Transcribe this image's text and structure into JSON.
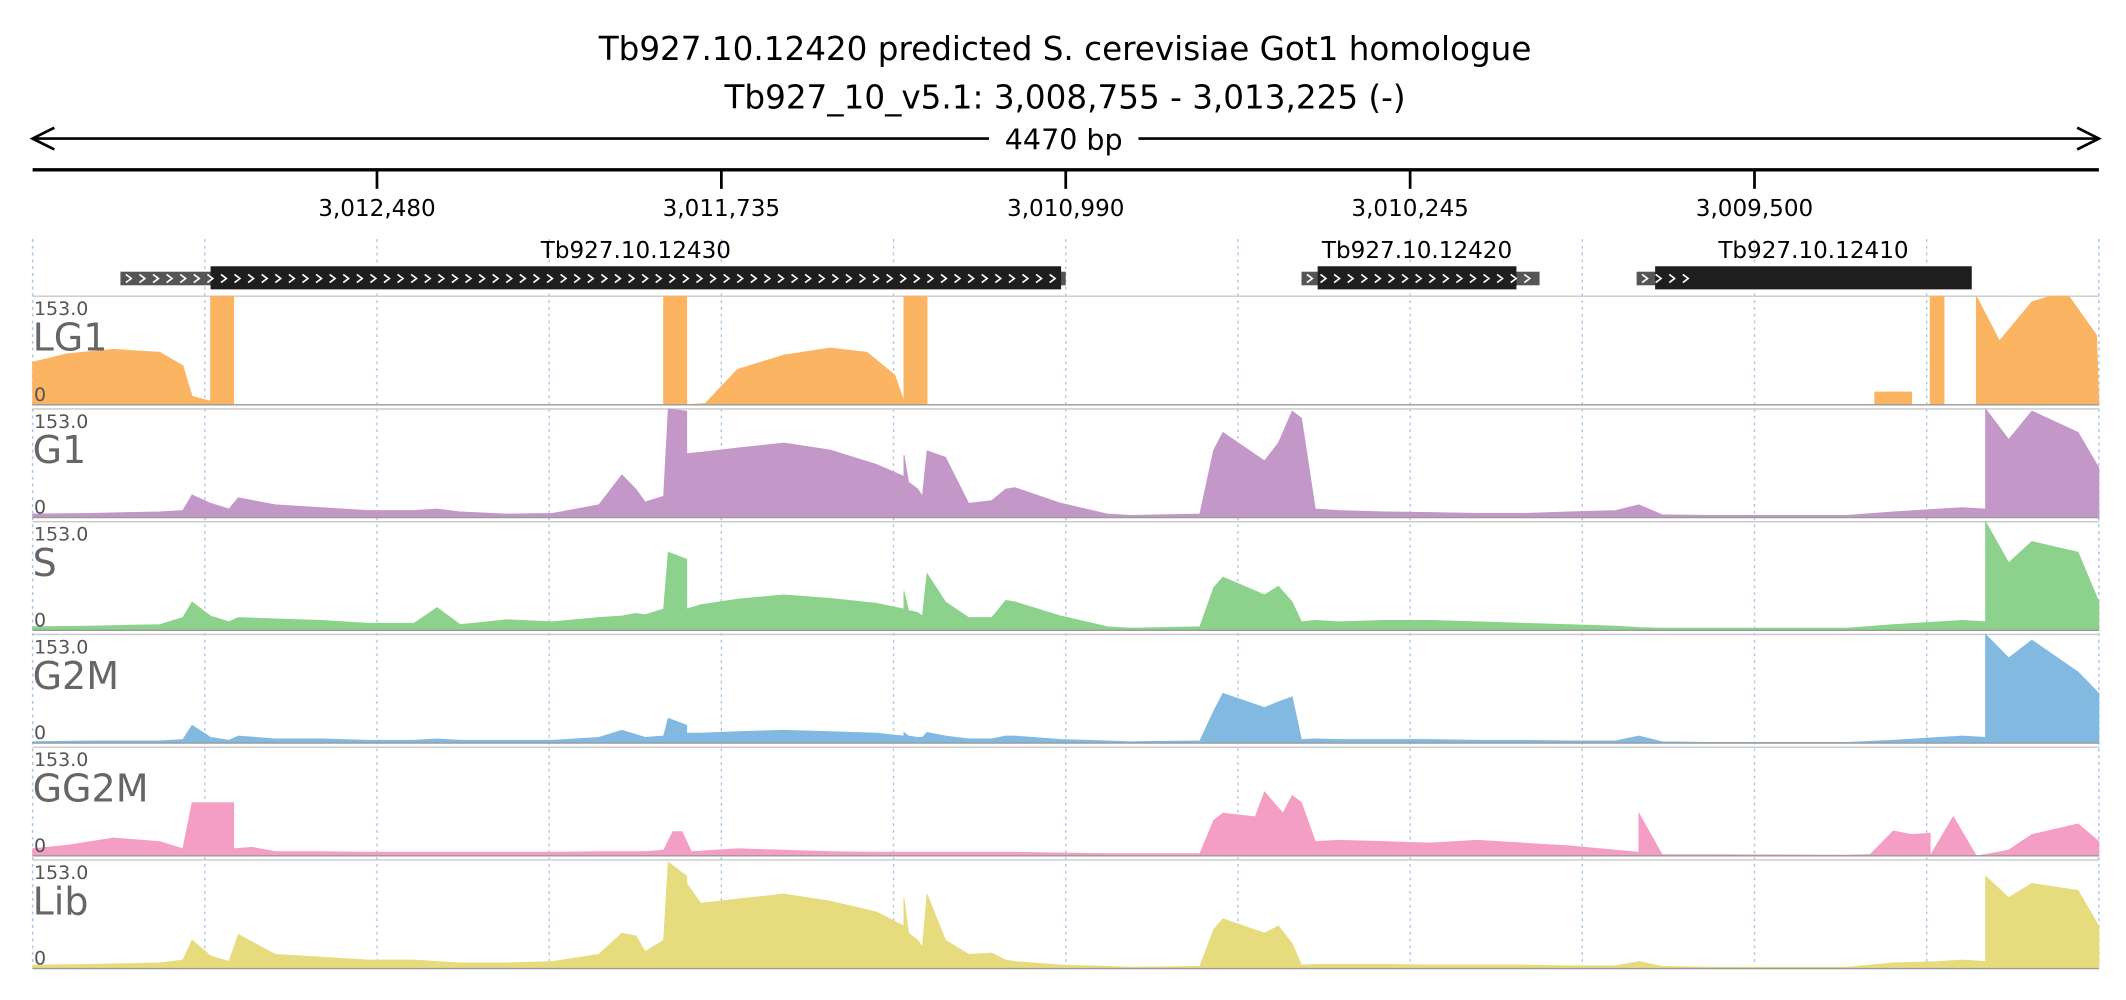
{
  "header": {
    "title_line1": "Tb927.10.12420  predicted S. cerevisiae Got1 homologue",
    "title_line2": "Tb927_10_v5.1: 3,008,755 - 3,013,225 (-)",
    "span_label": "4470 bp"
  },
  "chart_data": {
    "type": "area",
    "strand": "-",
    "x_range": [
      3013225,
      3008755
    ],
    "ticks": [
      {
        "pos": 3012480,
        "label": "3,012,480"
      },
      {
        "pos": 3011735,
        "label": "3,011,735"
      },
      {
        "pos": 3010990,
        "label": "3,010,990"
      },
      {
        "pos": 3010245,
        "label": "3,010,245"
      },
      {
        "pos": 3009500,
        "label": "3,009,500"
      }
    ],
    "genes": [
      {
        "label": "Tb927.10.12430",
        "utr": [
          3013035,
          3010990
        ],
        "cds": [
          3012840,
          3011000
        ]
      },
      {
        "label": "Tb927.10.12420",
        "utr": [
          3010480,
          3009965
        ],
        "cds": [
          3010445,
          3010015
        ]
      },
      {
        "label": "Tb927.10.12410",
        "utr": [
          3009755,
          3009610
        ],
        "cds": [
          3009715,
          3009030
        ]
      }
    ],
    "y_range": [
      0,
      153.0
    ],
    "tracks": [
      {
        "name": "LG1",
        "max_label": "153.0",
        "min_label": "0",
        "color": "#fab462",
        "x": [
          3013225,
          3013150,
          3013050,
          3012950,
          3012900,
          3012880,
          3012840,
          3012840,
          3012790,
          3012790,
          3011860,
          3011860,
          3011810,
          3011810,
          3011770,
          3011700,
          3011600,
          3011500,
          3011420,
          3011360,
          3011340,
          3011340,
          3011290,
          3011290,
          3009240,
          3009240,
          3009160,
          3009160,
          3009120,
          3009120,
          3009090,
          3009090,
          3009020,
          3009020,
          3008970,
          3008900,
          3008860,
          3008820,
          3008760,
          3008755
        ],
        "y": [
          60,
          72,
          78,
          74,
          55,
          12,
          5,
          153,
          153,
          0,
          0,
          153,
          153,
          0,
          2,
          50,
          70,
          80,
          74,
          42,
          5,
          153,
          153,
          0,
          0,
          18,
          18,
          0,
          0,
          153,
          153,
          0,
          0,
          153,
          90,
          145,
          153,
          153,
          98,
          0
        ]
      },
      {
        "name": "G1",
        "max_label": "153.0",
        "min_label": "0",
        "color": "#c398c8",
        "x": [
          3013225,
          3013100,
          3012950,
          3012900,
          3012880,
          3012840,
          3012800,
          3012780,
          3012700,
          3012600,
          3012500,
          3012400,
          3012350,
          3012300,
          3012200,
          3012100,
          3012000,
          3011950,
          3011920,
          3011900,
          3011860,
          3011850,
          3011810,
          3011810,
          3011780,
          3011700,
          3011600,
          3011500,
          3011400,
          3011340,
          3011340,
          3011330,
          3011310,
          3011300,
          3011290,
          3011250,
          3011200,
          3011150,
          3011120,
          3011100,
          3011000,
          3010900,
          3010850,
          3010700,
          3010670,
          3010650,
          3010560,
          3010530,
          3010500,
          3010480,
          3010450,
          3010400,
          3010300,
          3010200,
          3010100,
          3010000,
          3009900,
          3009800,
          3009750,
          3009700,
          3009600,
          3009500,
          3009300,
          3009200,
          3009100,
          3009050,
          3009000,
          3009000,
          3008950,
          3008900,
          3008800,
          3008755
        ],
        "y": [
          5,
          6,
          8,
          10,
          32,
          20,
          12,
          28,
          18,
          14,
          10,
          10,
          12,
          8,
          5,
          6,
          18,
          60,
          40,
          22,
          30,
          153,
          150,
          90,
          92,
          98,
          105,
          95,
          75,
          58,
          88,
          50,
          40,
          30,
          94,
          85,
          20,
          24,
          40,
          42,
          20,
          5,
          3,
          5,
          95,
          120,
          80,
          105,
          150,
          140,
          12,
          10,
          8,
          7,
          6,
          6,
          8,
          10,
          18,
          4,
          3,
          3,
          3,
          8,
          12,
          14,
          12,
          153,
          110,
          150,
          120,
          70
        ]
      },
      {
        "name": "S",
        "max_label": "153.0",
        "min_label": "0",
        "color": "#8cd28c",
        "x": [
          3013225,
          3013100,
          3012950,
          3012900,
          3012880,
          3012840,
          3012800,
          3012780,
          3012700,
          3012600,
          3012500,
          3012400,
          3012350,
          3012300,
          3012200,
          3012100,
          3012000,
          3011950,
          3011920,
          3011900,
          3011860,
          3011850,
          3011810,
          3011810,
          3011780,
          3011700,
          3011600,
          3011500,
          3011400,
          3011340,
          3011340,
          3011330,
          3011310,
          3011300,
          3011290,
          3011250,
          3011200,
          3011150,
          3011120,
          3011100,
          3011000,
          3010900,
          3010850,
          3010700,
          3010670,
          3010650,
          3010560,
          3010530,
          3010500,
          3010480,
          3010450,
          3010400,
          3010300,
          3010200,
          3010100,
          3010000,
          3009900,
          3009800,
          3009750,
          3009700,
          3009600,
          3009500,
          3009300,
          3009200,
          3009100,
          3009050,
          3009000,
          3009000,
          3008950,
          3008900,
          3008800,
          3008755
        ],
        "y": [
          5,
          6,
          8,
          18,
          40,
          20,
          12,
          18,
          16,
          14,
          10,
          10,
          32,
          8,
          15,
          12,
          18,
          20,
          24,
          22,
          30,
          110,
          100,
          30,
          36,
          44,
          50,
          45,
          38,
          30,
          55,
          28,
          25,
          20,
          80,
          40,
          18,
          18,
          42,
          40,
          20,
          5,
          3,
          5,
          60,
          75,
          50,
          62,
          40,
          12,
          14,
          12,
          14,
          14,
          12,
          10,
          8,
          6,
          4,
          3,
          3,
          3,
          3,
          8,
          12,
          14,
          12,
          153,
          95,
          125,
          110,
          40
        ]
      },
      {
        "name": "G2M",
        "max_label": "153.0",
        "min_label": "0",
        "color": "#82b9e1",
        "x": [
          3013225,
          3013100,
          3012950,
          3012900,
          3012880,
          3012840,
          3012800,
          3012780,
          3012700,
          3012600,
          3012500,
          3012400,
          3012350,
          3012300,
          3012200,
          3012100,
          3012000,
          3011950,
          3011920,
          3011900,
          3011860,
          3011850,
          3011810,
          3011810,
          3011780,
          3011700,
          3011600,
          3011500,
          3011400,
          3011340,
          3011340,
          3011330,
          3011310,
          3011300,
          3011290,
          3011250,
          3011200,
          3011150,
          3011120,
          3011100,
          3011000,
          3010900,
          3010850,
          3010700,
          3010670,
          3010650,
          3010560,
          3010530,
          3010500,
          3010480,
          3010450,
          3010400,
          3010300,
          3010200,
          3010100,
          3010000,
          3009900,
          3009800,
          3009750,
          3009700,
          3009600,
          3009500,
          3009300,
          3009200,
          3009100,
          3009050,
          3009000,
          3009000,
          3008950,
          3008900,
          3008800,
          3008755
        ],
        "y": [
          2,
          3,
          3,
          5,
          25,
          8,
          4,
          10,
          6,
          6,
          4,
          4,
          6,
          4,
          4,
          4,
          8,
          18,
          12,
          8,
          10,
          35,
          25,
          14,
          14,
          16,
          18,
          16,
          14,
          10,
          15,
          10,
          8,
          8,
          15,
          10,
          6,
          6,
          10,
          10,
          5,
          3,
          2,
          3,
          45,
          70,
          50,
          58,
          65,
          5,
          6,
          5,
          5,
          5,
          4,
          4,
          3,
          3,
          10,
          2,
          1,
          1,
          1,
          4,
          8,
          10,
          8,
          153,
          120,
          145,
          100,
          70
        ]
      },
      {
        "name": "GG2M",
        "max_label": "153.0",
        "min_label": "0",
        "color": "#f59ec5",
        "x": [
          3013225,
          3013150,
          3013050,
          3012950,
          3012900,
          3012880,
          3012840,
          3012840,
          3012790,
          3012790,
          3012750,
          3012700,
          3012600,
          3012500,
          3012300,
          3012100,
          3012000,
          3011900,
          3011860,
          3011840,
          3011820,
          3011800,
          3011700,
          3011600,
          3011500,
          3011400,
          3011200,
          3011100,
          3011000,
          3010900,
          3010700,
          3010670,
          3010650,
          3010580,
          3010560,
          3010520,
          3010500,
          3010480,
          3010450,
          3010400,
          3010300,
          3010200,
          3010100,
          3010000,
          3009900,
          3009800,
          3009750,
          3009750,
          3009700,
          3009300,
          3009250,
          3009200,
          3009160,
          3009120,
          3009120,
          3009070,
          3009070,
          3009020,
          3009000,
          3008950,
          3008900,
          3008800,
          3008755
        ],
        "y": [
          10,
          15,
          25,
          20,
          10,
          75,
          75,
          75,
          75,
          10,
          12,
          6,
          6,
          5,
          5,
          5,
          6,
          6,
          8,
          34,
          34,
          6,
          10,
          8,
          6,
          5,
          5,
          5,
          4,
          3,
          3,
          50,
          60,
          55,
          90,
          60,
          85,
          75,
          20,
          22,
          20,
          18,
          22,
          18,
          14,
          8,
          5,
          60,
          2,
          1,
          2,
          35,
          30,
          32,
          0,
          55,
          55,
          0,
          2,
          8,
          30,
          45,
          20
        ]
      },
      {
        "name": "Lib",
        "max_label": "153.0",
        "min_label": "0",
        "color": "#e6dc7d",
        "x": [
          3013225,
          3013100,
          3012950,
          3012900,
          3012880,
          3012840,
          3012800,
          3012780,
          3012700,
          3012600,
          3012500,
          3012400,
          3012350,
          3012300,
          3012200,
          3012100,
          3012000,
          3011950,
          3011920,
          3011900,
          3011860,
          3011850,
          3011810,
          3011810,
          3011780,
          3011700,
          3011600,
          3011500,
          3011400,
          3011340,
          3011340,
          3011330,
          3011310,
          3011300,
          3011290,
          3011250,
          3011200,
          3011150,
          3011120,
          3011100,
          3011000,
          3010900,
          3010850,
          3010700,
          3010670,
          3010650,
          3010560,
          3010530,
          3010500,
          3010480,
          3010450,
          3010400,
          3010300,
          3010200,
          3010100,
          3010000,
          3009900,
          3009800,
          3009750,
          3009700,
          3009600,
          3009500,
          3009300,
          3009200,
          3009100,
          3009050,
          3009000,
          3009000,
          3008950,
          3008900,
          3008800,
          3008755
        ],
        "y": [
          5,
          6,
          8,
          12,
          40,
          18,
          10,
          48,
          20,
          16,
          12,
          12,
          10,
          8,
          8,
          10,
          20,
          50,
          46,
          24,
          40,
          150,
          130,
          120,
          92,
          98,
          105,
          95,
          80,
          60,
          100,
          50,
          40,
          30,
          105,
          40,
          20,
          22,
          12,
          10,
          5,
          3,
          2,
          3,
          55,
          70,
          50,
          60,
          35,
          5,
          6,
          6,
          6,
          5,
          5,
          5,
          4,
          4,
          10,
          3,
          2,
          2,
          2,
          8,
          10,
          12,
          10,
          130,
          100,
          120,
          110,
          60
        ]
      }
    ]
  }
}
